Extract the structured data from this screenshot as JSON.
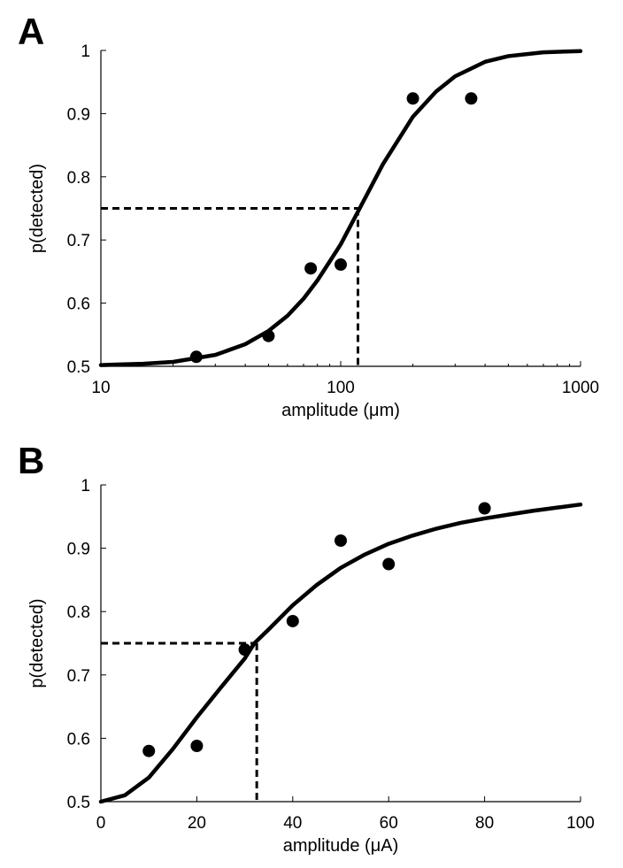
{
  "chart_data": [
    {
      "panel": "A",
      "type": "scatter",
      "xscale": "log",
      "xlim": [
        10,
        1000
      ],
      "ylim": [
        0.5,
        1
      ],
      "xticks": [
        10,
        100,
        1000
      ],
      "yticks": [
        0.5,
        0.6,
        0.7,
        0.8,
        0.9,
        1
      ],
      "xlabel": "amplitude (μm)",
      "ylabel": "p(detected)",
      "grid": false,
      "points": [
        {
          "x": 25,
          "y": 0.515
        },
        {
          "x": 50,
          "y": 0.548
        },
        {
          "x": 75,
          "y": 0.655
        },
        {
          "x": 100,
          "y": 0.661
        },
        {
          "x": 200,
          "y": 0.924
        },
        {
          "x": 350,
          "y": 0.924
        }
      ],
      "fit_curve": {
        "x": [
          10,
          15,
          20,
          30,
          40,
          50,
          60,
          70,
          80,
          90,
          100,
          120,
          150,
          200,
          250,
          300,
          400,
          500,
          700,
          1000
        ],
        "y": [
          0.502,
          0.504,
          0.507,
          0.518,
          0.535,
          0.556,
          0.58,
          0.607,
          0.636,
          0.666,
          0.693,
          0.75,
          0.82,
          0.895,
          0.935,
          0.959,
          0.982,
          0.991,
          0.997,
          0.999
        ]
      },
      "threshold": {
        "x": 118,
        "y": 0.75
      }
    },
    {
      "panel": "B",
      "type": "scatter",
      "xscale": "linear",
      "xlim": [
        0,
        100
      ],
      "ylim": [
        0.5,
        1
      ],
      "xticks": [
        0,
        20,
        40,
        60,
        80,
        100
      ],
      "yticks": [
        0.5,
        0.6,
        0.7,
        0.8,
        0.9,
        1
      ],
      "xlabel": "amplitude (μA)",
      "ylabel": "p(detected)",
      "grid": false,
      "points": [
        {
          "x": 10,
          "y": 0.58
        },
        {
          "x": 20,
          "y": 0.588
        },
        {
          "x": 30,
          "y": 0.74
        },
        {
          "x": 40,
          "y": 0.785
        },
        {
          "x": 50,
          "y": 0.912
        },
        {
          "x": 60,
          "y": 0.875
        },
        {
          "x": 80,
          "y": 0.963
        }
      ],
      "fit_curve": {
        "x": [
          0,
          5,
          10,
          15,
          20,
          25,
          30,
          32,
          35,
          40,
          45,
          50,
          55,
          60,
          65,
          70,
          75,
          80,
          85,
          90,
          95,
          100
        ],
        "y": [
          0.5,
          0.51,
          0.538,
          0.583,
          0.633,
          0.68,
          0.726,
          0.75,
          0.772,
          0.81,
          0.842,
          0.869,
          0.89,
          0.907,
          0.92,
          0.931,
          0.94,
          0.947,
          0.953,
          0.959,
          0.964,
          0.969
        ]
      },
      "threshold": {
        "x": 32.5,
        "y": 0.75
      }
    }
  ]
}
